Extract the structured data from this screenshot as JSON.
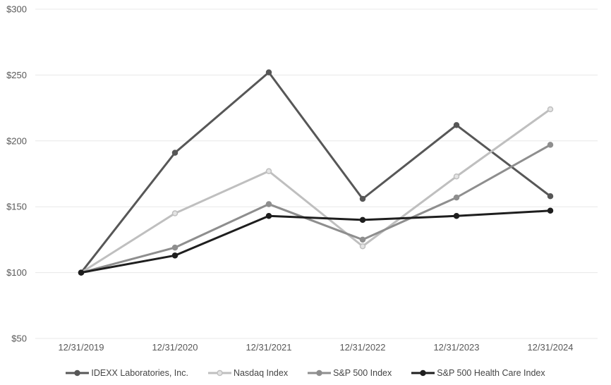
{
  "chart_data": {
    "type": "line",
    "title": "",
    "xlabel": "",
    "ylabel": "",
    "ylim": [
      50,
      300
    ],
    "grid": true,
    "legend_position": "bottom",
    "y_ticks": [
      {
        "value": 300,
        "label": "$300"
      },
      {
        "value": 250,
        "label": "$250"
      },
      {
        "value": 200,
        "label": "$200"
      },
      {
        "value": 150,
        "label": "$150"
      },
      {
        "value": 100,
        "label": "$100"
      },
      {
        "value": 50,
        "label": "$50"
      }
    ],
    "categories": [
      "12/31/2019",
      "12/31/2020",
      "12/31/2021",
      "12/31/2022",
      "12/31/2023",
      "12/31/2024"
    ],
    "series": [
      {
        "name": "IDEXX Laboratories, Inc.",
        "color": "#575757",
        "marker_fill": "#575757",
        "values": [
          100,
          191,
          252,
          156,
          212,
          158
        ]
      },
      {
        "name": "Nasdaq Index",
        "color": "#bfbfbf",
        "marker_fill": "#e4e4e4",
        "values": [
          100,
          145,
          177,
          120,
          173,
          224
        ]
      },
      {
        "name": "S&P 500 Index",
        "color": "#8e8e8e",
        "marker_fill": "#8e8e8e",
        "values": [
          100,
          119,
          152,
          125,
          157,
          197
        ]
      },
      {
        "name": "S&P 500 Health Care Index",
        "color": "#1e1e1e",
        "marker_fill": "#1e1e1e",
        "values": [
          100,
          113,
          143,
          140,
          143,
          147
        ]
      }
    ],
    "colors": {
      "gridline": "#e8e8e8",
      "axis_text": "#595959",
      "legend_text": "#454545",
      "background": "#ffffff"
    }
  }
}
